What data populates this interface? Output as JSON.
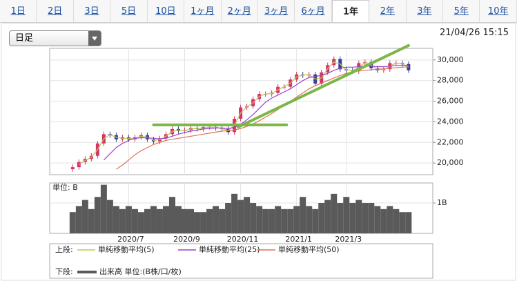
{
  "tabs": [
    "1日",
    "2日",
    "3日",
    "5日",
    "10日",
    "1ヶ月",
    "2ヶ月",
    "3ヶ月",
    "6ヶ月",
    "1年",
    "2年",
    "3年",
    "5年",
    "10年"
  ],
  "active_tab": "1年",
  "dropdown": "日足",
  "timestamp": "21/04/26 15:15",
  "chart_data": [
    {
      "type": "candlestick",
      "legend_label": "上段:",
      "up_color": "#d6336c",
      "down_color": "#3a3f9e",
      "open": [
        19400,
        19600,
        20100,
        20400,
        20700,
        21900,
        22800,
        22700,
        22300,
        22500,
        22300,
        22500,
        22700,
        22300,
        22100,
        22400,
        22800,
        23300,
        23100,
        23200,
        23400,
        23300,
        23500,
        23500,
        23400,
        23300,
        23000,
        24300,
        25400,
        25500,
        26200,
        26700,
        26700,
        26800,
        27400,
        27400,
        28100,
        28600,
        28500,
        28600,
        27700,
        28800,
        29500,
        30100,
        29100,
        29000,
        28900,
        29700,
        29800,
        29200,
        29000,
        29100,
        29700,
        29700,
        29600
      ],
      "high": [
        19850,
        20350,
        20650,
        20950,
        22150,
        23050,
        23050,
        22950,
        22750,
        22750,
        22750,
        22950,
        22950,
        22550,
        22650,
        23050,
        23550,
        23550,
        23450,
        23650,
        23650,
        23750,
        23750,
        23750,
        23650,
        23550,
        24550,
        25650,
        25750,
        26450,
        26950,
        26950,
        27050,
        27650,
        27650,
        28350,
        28850,
        28850,
        28850,
        28850,
        29050,
        29750,
        30350,
        30350,
        29350,
        29250,
        29950,
        30050,
        30050,
        29450,
        29350,
        29950,
        29950,
        29950,
        29850
      ],
      "low": [
        19150,
        19350,
        19850,
        20150,
        20450,
        21650,
        22450,
        22050,
        22050,
        22050,
        22050,
        22250,
        22050,
        21850,
        21850,
        22150,
        22550,
        22850,
        22850,
        22950,
        23050,
        23050,
        23250,
        23150,
        23050,
        22750,
        22750,
        24050,
        25150,
        25250,
        25950,
        26450,
        26450,
        26550,
        27150,
        27150,
        27850,
        28250,
        28250,
        27450,
        27450,
        28550,
        29250,
        28850,
        28750,
        28650,
        28650,
        29450,
        28950,
        28750,
        28750,
        28850,
        29450,
        29350,
        28750
      ],
      "close": [
        19600,
        20100,
        20400,
        20700,
        21900,
        22800,
        22700,
        22300,
        22500,
        22300,
        22500,
        22700,
        22300,
        22100,
        22400,
        22800,
        23300,
        23100,
        23200,
        23400,
        23300,
        23500,
        23500,
        23400,
        23300,
        23000,
        24300,
        25400,
        25500,
        26200,
        26700,
        26700,
        26800,
        27400,
        27400,
        28100,
        28600,
        28500,
        28600,
        27700,
        28800,
        29500,
        30100,
        29100,
        29000,
        28900,
        29700,
        29800,
        29200,
        29000,
        29100,
        29700,
        29700,
        29600,
        29000
      ],
      "series": [
        {
          "name": "単純移動平均(5)",
          "color": "#b5cc4a",
          "values": [
            null,
            19850,
            20250,
            20550,
            21300,
            22350,
            22750,
            22500,
            22400,
            22400,
            22400,
            22600,
            22500,
            22200,
            22250,
            22600,
            23050,
            23200,
            23150,
            23300,
            23350,
            23400,
            23500,
            23450,
            23350,
            23150,
            23650,
            24850,
            25450,
            25850,
            26450,
            26700,
            26750,
            27100,
            27400,
            27750,
            28350,
            28550,
            28550,
            28150,
            28250,
            29150,
            29800,
            29600,
            29050,
            28950,
            29300,
            29750,
            29500,
            29100,
            29050,
            29400,
            29700,
            29650,
            29300
          ]
        },
        {
          "name": "単純移動平均(25)",
          "color": "#9b3fd0",
          "values": [
            null,
            null,
            null,
            null,
            null,
            20300,
            20900,
            21500,
            21900,
            22200,
            22400,
            22450,
            22450,
            22400,
            22350,
            22400,
            22600,
            22800,
            22950,
            23100,
            23200,
            23300,
            23350,
            23400,
            23400,
            23350,
            23450,
            23750,
            24200,
            24700,
            25300,
            25900,
            26300,
            26600,
            26900,
            27200,
            27600,
            28000,
            28300,
            28400,
            28500,
            28700,
            29000,
            29200,
            29300,
            29300,
            29350,
            29400,
            29400,
            29350,
            29350,
            29400,
            29450,
            29500,
            29450
          ]
        },
        {
          "name": "単純移動平均(50)",
          "color": "#e07050",
          "values": [
            null,
            null,
            null,
            null,
            null,
            null,
            null,
            19400,
            19800,
            20300,
            20800,
            21200,
            21500,
            21800,
            22000,
            22200,
            22300,
            22400,
            22500,
            22600,
            22700,
            22800,
            22900,
            23000,
            23100,
            23150,
            23200,
            23350,
            23550,
            23800,
            24100,
            24450,
            24800,
            25200,
            25600,
            26000,
            26400,
            26800,
            27200,
            27500,
            27750,
            28000,
            28250,
            28500,
            28700,
            28850,
            28950,
            29000,
            29050,
            29100,
            29150,
            29200,
            29250,
            29300,
            29350
          ]
        }
      ],
      "trendlines": [
        {
          "color": "#7ab648",
          "points": [
            [
              13.0,
              23700
            ],
            [
              34.4,
              23700
            ]
          ]
        },
        {
          "color": "#7ab648",
          "points": [
            [
              26.6,
              23500
            ],
            [
              54.0,
              31400
            ]
          ]
        }
      ],
      "xlim": [
        -3.7,
        57.9
      ],
      "ylim": [
        18870,
        31130
      ],
      "yticks": [
        {
          "value": 20000,
          "label": "20,000"
        },
        {
          "value": 22000,
          "label": "22,000"
        },
        {
          "value": 24000,
          "label": "24,000"
        },
        {
          "value": 26000,
          "label": "26,000"
        },
        {
          "value": 28000,
          "label": "28,000"
        },
        {
          "value": 30000,
          "label": "30,000"
        }
      ],
      "grid": true
    },
    {
      "type": "bar",
      "legend_label": "下段:",
      "unit_label": "単位: B",
      "series": [
        {
          "name": "出来高 単位:(B株/口/枚)",
          "color": "#5a5a5a",
          "values": [
            0.7,
            0.9,
            1.1,
            0.8,
            1.2,
            1.6,
            1.1,
            0.9,
            0.8,
            0.9,
            0.8,
            0.7,
            0.8,
            0.9,
            0.8,
            0.9,
            1.2,
            0.9,
            0.8,
            0.8,
            0.7,
            0.7,
            0.8,
            0.9,
            0.8,
            1.0,
            1.3,
            1.1,
            1.2,
            1.0,
            0.9,
            0.8,
            0.8,
            0.9,
            0.8,
            0.8,
            0.9,
            1.2,
            0.9,
            0.8,
            1.0,
            1.1,
            1.3,
            1.0,
            1.2,
            1.0,
            1.1,
            1.0,
            1.0,
            0.9,
            0.8,
            0.9,
            0.8,
            0.7,
            0.7
          ]
        }
      ],
      "xlim": [
        -3.7,
        57.9
      ],
      "ylim": [
        0,
        1.66
      ],
      "yticks": [
        {
          "value": 1,
          "label": "1B"
        }
      ],
      "xticks": [
        {
          "value": 9,
          "label": "2020/7"
        },
        {
          "value": 18,
          "label": "2020/9"
        },
        {
          "value": 27,
          "label": "2020/11"
        },
        {
          "value": 36,
          "label": "2021/1"
        },
        {
          "value": 44,
          "label": "2021/3"
        }
      ],
      "grid": true
    }
  ]
}
